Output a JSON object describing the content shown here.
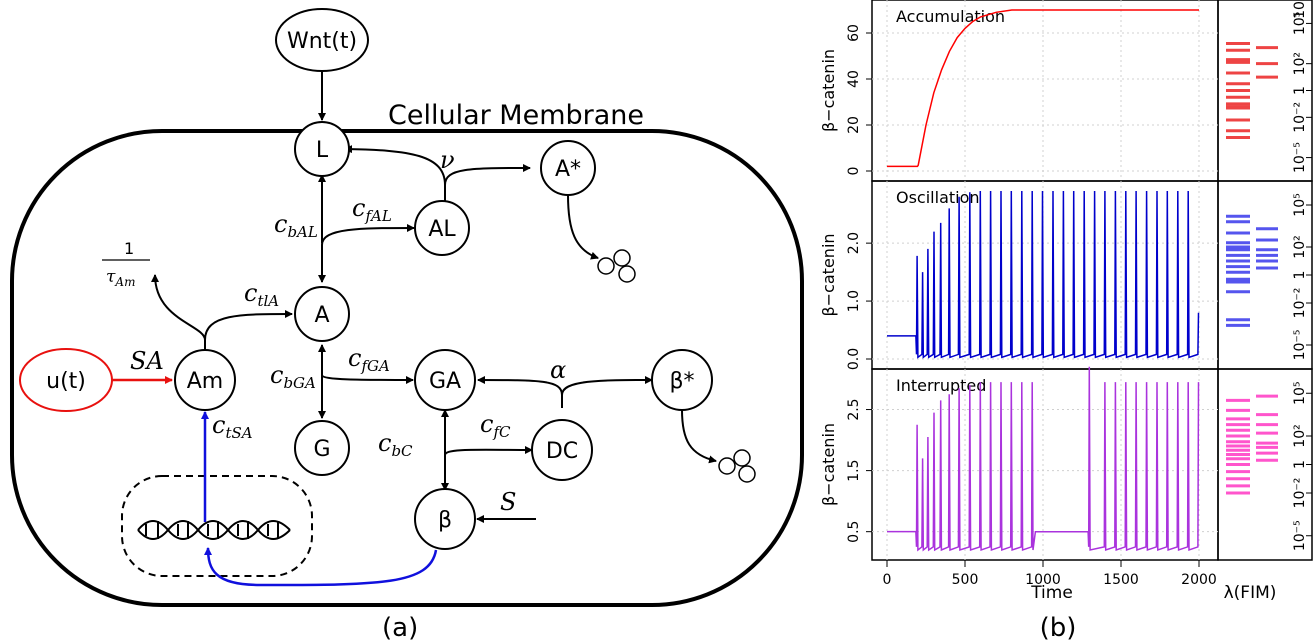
{
  "diagram": {
    "title": "Cellular Membrane",
    "panel_label": "(a)",
    "nodes": {
      "wnt": "Wnt(t)",
      "u": "u(t)",
      "L": "L",
      "A_star": "A*",
      "AL": "AL",
      "A": "A",
      "Am": "Am",
      "GA": "GA",
      "beta_star": "β*",
      "G": "G",
      "DC": "DC",
      "beta": "β"
    },
    "edge_labels": {
      "nu": "ν",
      "c_fAL": "c",
      "c_fAL_sub": "fAL",
      "c_bAL": "c",
      "c_bAL_sub": "bAL",
      "decay_num": "1",
      "decay_den": "τ",
      "decay_den_sub": "Am",
      "c_tlA": "c",
      "c_tlA_sub": "tlA",
      "SA": "SA",
      "c_fGA": "c",
      "c_fGA_sub": "fGA",
      "c_bGA": "c",
      "c_bGA_sub": "bGA",
      "alpha": "α",
      "c_tSA": "c",
      "c_tSA_sub": "tSA",
      "c_fC": "c",
      "c_fC_sub": "fC",
      "c_bC": "c",
      "c_bC_sub": "bC",
      "S": "S"
    },
    "colors": {
      "control": "#e8110f",
      "transcription": "#1010dd"
    }
  },
  "plots": {
    "panel_label": "(b)",
    "x_label": "Time",
    "y_label": "β−catenin",
    "fim_label": "λ(FIM)",
    "x_ticks": [
      "0",
      "500",
      "1000",
      "1500",
      "2000"
    ],
    "fim_ticks": [
      "10⁵",
      "10²",
      "1",
      "10⁻²",
      "10⁻⁵"
    ],
    "fim_tick_top": "10"
  },
  "chart_data": [
    {
      "type": "line",
      "title": "Accumulation",
      "ylabel": "β−catenin",
      "color": "#ff0000",
      "xlim": [
        0,
        2000
      ],
      "ylim": [
        0,
        70
      ],
      "y_ticks": [
        "0",
        "20",
        "40",
        "60"
      ],
      "y_tick_values": [
        0,
        20,
        40,
        60
      ],
      "x": [
        0,
        195,
        200,
        250,
        300,
        350,
        400,
        450,
        500,
        550,
        600,
        700,
        800,
        900,
        1000,
        1200,
        1500,
        2000
      ],
      "y": [
        2,
        2,
        2.5,
        20,
        34,
        44,
        52,
        58,
        62,
        65,
        67,
        69,
        70,
        70,
        70,
        70,
        70,
        70
      ],
      "fim_eigenvalues_log10": [
        [
          3.5,
          3.0,
          2.3,
          2.1,
          1.3,
          0.5,
          0.0,
          -0.5,
          -1.0,
          -1.2,
          -1.3,
          -2.2,
          -3.0,
          -3.5
        ],
        [
          3.2,
          2.0,
          1.0
        ]
      ],
      "fim_color": "#ee4444"
    },
    {
      "type": "line",
      "title": "Oscillation",
      "ylabel": "β−catenin",
      "color": "#0000cc",
      "xlim": [
        0,
        2000
      ],
      "ylim": [
        0,
        2.9
      ],
      "y_ticks": [
        "0.0",
        "1.0",
        "2.0"
      ],
      "y_tick_values": [
        0,
        1,
        2
      ],
      "baseline": 0.4,
      "trough": 0.03,
      "peaks_x": [
        193,
        228,
        262,
        301,
        344,
        399,
        462,
        531,
        598,
        664,
        731,
        797,
        864,
        931,
        997,
        1064,
        1131,
        1197,
        1264,
        1331,
        1397,
        1464,
        1531,
        1597,
        1664,
        1731,
        1797,
        1864,
        1931,
        1997
      ],
      "peaks_y": [
        1.78,
        1.5,
        1.9,
        2.2,
        2.35,
        2.6,
        2.8,
        2.88,
        2.9,
        2.9,
        2.9,
        2.9,
        2.9,
        2.9,
        2.9,
        2.9,
        2.9,
        2.9,
        2.9,
        2.9,
        2.9,
        2.9,
        2.9,
        2.9,
        2.9,
        2.9,
        2.9,
        2.9,
        2.9,
        0.8
      ],
      "fim_eigenvalues_log10": [
        [
          4.2,
          3.8,
          3.0,
          2.3,
          2.0,
          1.8,
          1.4,
          1.0,
          0.6,
          0.2,
          -0.3,
          -0.5,
          -1.2,
          -3.2,
          -3.6
        ],
        [
          3.3,
          2.5,
          1.8,
          1.4,
          1.0,
          0.5
        ]
      ],
      "fim_color": "#5555ee"
    },
    {
      "type": "line",
      "title": "Interrupted",
      "ylabel": "β−catenin",
      "color": "#aa33dd",
      "xlim": [
        0,
        2000
      ],
      "ylim": [
        0.2,
        3.0
      ],
      "y_ticks": [
        "0.5",
        "1.5",
        "2.5"
      ],
      "y_tick_values": [
        0.5,
        1.5,
        2.5
      ],
      "baseline": 0.5,
      "trough": 0.2,
      "peaks_x": [
        193,
        228,
        262,
        301,
        344,
        399,
        462,
        531,
        598,
        664,
        731,
        797,
        864,
        931,
        1297,
        1397,
        1464,
        1531,
        1597,
        1664,
        1731,
        1797,
        1864,
        1931,
        1997
      ],
      "peaks_y": [
        2.25,
        1.7,
        2.05,
        2.45,
        2.65,
        2.75,
        2.85,
        2.9,
        2.95,
        2.95,
        2.95,
        2.95,
        2.95,
        2.95,
        3.2,
        2.95,
        2.95,
        2.95,
        2.95,
        2.95,
        2.95,
        2.95,
        2.95,
        2.95,
        2.95
      ],
      "fim_eigenvalues_log10": [
        [
          4.5,
          3.8,
          3.2,
          2.8,
          2.4,
          2.0,
          1.6,
          1.3,
          1.0,
          0.7,
          0.4,
          0.0,
          -0.5,
          -1.0,
          -1.5,
          -2.0
        ],
        [
          4.8,
          3.5,
          2.8,
          2.2,
          1.5,
          1.2,
          0.8,
          0.3
        ]
      ],
      "fim_color": "#ff55cc"
    }
  ]
}
